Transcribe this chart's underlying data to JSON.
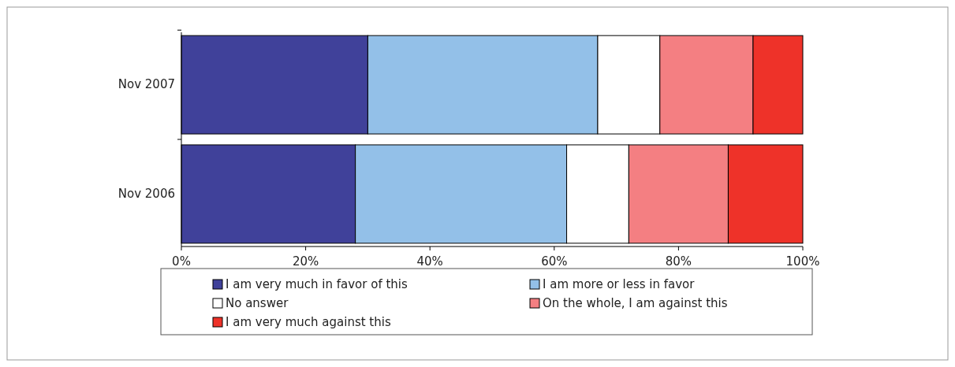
{
  "chart_data": {
    "type": "bar",
    "orientation": "horizontal",
    "stacked": true,
    "categories": [
      "Nov 2007",
      "Nov 2006"
    ],
    "series": [
      {
        "name": "I am very much in favor of this",
        "color": "#40419a",
        "values": [
          30,
          28
        ]
      },
      {
        "name": "I am more or less in favor",
        "color": "#93c0e8",
        "values": [
          37,
          34
        ]
      },
      {
        "name": "No answer",
        "color": "#ffffff",
        "values": [
          10,
          10
        ]
      },
      {
        "name": "On the whole, I am against this",
        "color": "#f47f82",
        "values": [
          15,
          16
        ]
      },
      {
        "name": "I am very much against this",
        "color": "#ee3229",
        "values": [
          8,
          12
        ]
      }
    ],
    "xlim": [
      0,
      100
    ],
    "xticks": [
      {
        "value": 0,
        "label": "0%"
      },
      {
        "value": 20,
        "label": "20%"
      },
      {
        "value": 40,
        "label": "40%"
      },
      {
        "value": 60,
        "label": "60%"
      },
      {
        "value": 80,
        "label": "80%"
      },
      {
        "value": 100,
        "label": "100%"
      }
    ],
    "grid": false,
    "legend": "bottom"
  }
}
